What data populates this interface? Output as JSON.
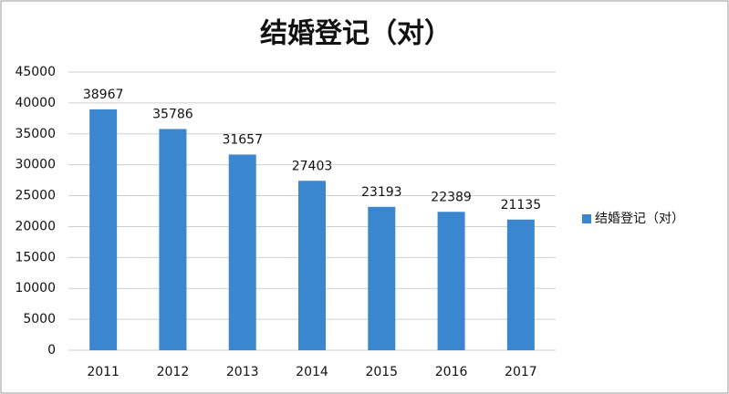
{
  "chart_data": {
    "type": "bar",
    "title": "结婚登记（对）",
    "categories": [
      "2011",
      "2012",
      "2013",
      "2014",
      "2015",
      "2016",
      "2017"
    ],
    "series": [
      {
        "name": "结婚登记（对）",
        "color": "#3a87d0",
        "values": [
          38967,
          35786,
          31657,
          27403,
          23193,
          22389,
          21135
        ]
      }
    ],
    "ylim": [
      0,
      45000
    ],
    "yticks": [
      0,
      5000,
      10000,
      15000,
      20000,
      25000,
      30000,
      35000,
      40000,
      45000
    ],
    "grid": true,
    "legend": "right",
    "data_labels": true
  }
}
